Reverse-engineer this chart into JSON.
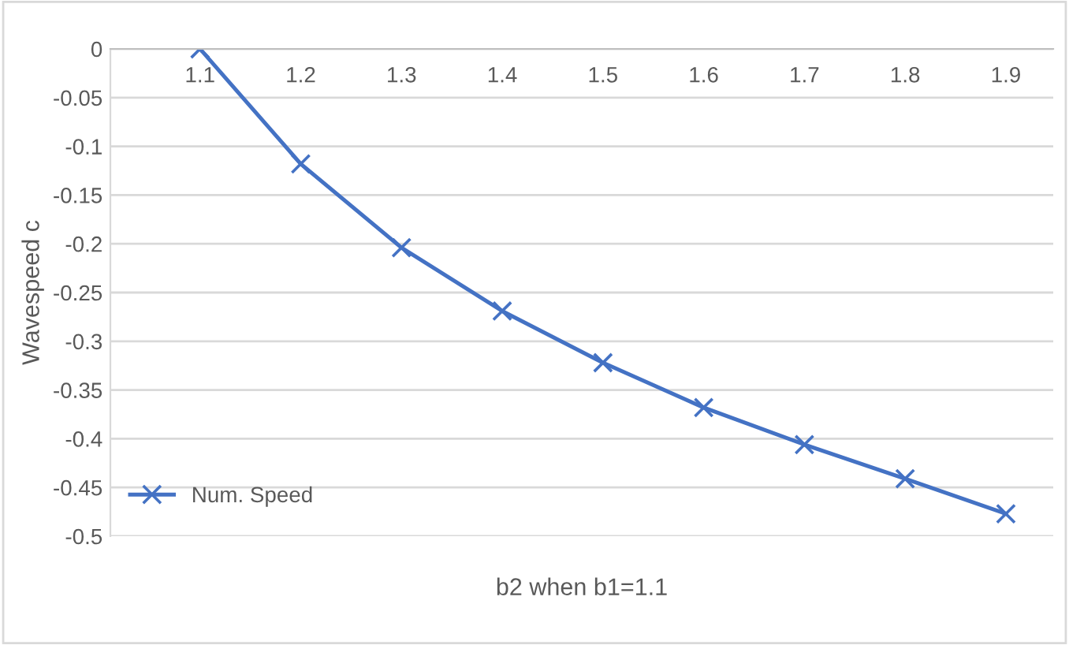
{
  "chart_data": {
    "type": "line",
    "xlabel": "b2 when b1=1.1",
    "ylabel": "Wavespeed c",
    "categories": [
      "1.1",
      "1.2",
      "1.3",
      "1.4",
      "1.5",
      "1.6",
      "1.7",
      "1.8",
      "1.9"
    ],
    "series": [
      {
        "name": "Num. Speed",
        "color": "#4472c4",
        "values": [
          0,
          -0.118,
          -0.204,
          -0.269,
          -0.322,
          -0.368,
          -0.406,
          -0.441,
          -0.477
        ]
      }
    ],
    "ylim": [
      -0.5,
      0
    ],
    "yticks": [
      0,
      -0.05,
      -0.1,
      -0.15,
      -0.2,
      -0.25,
      -0.3,
      -0.35,
      -0.4,
      -0.45,
      -0.5
    ],
    "grid": "y",
    "legend": "bottom left",
    "marker": "cross",
    "line_style": "solid"
  }
}
